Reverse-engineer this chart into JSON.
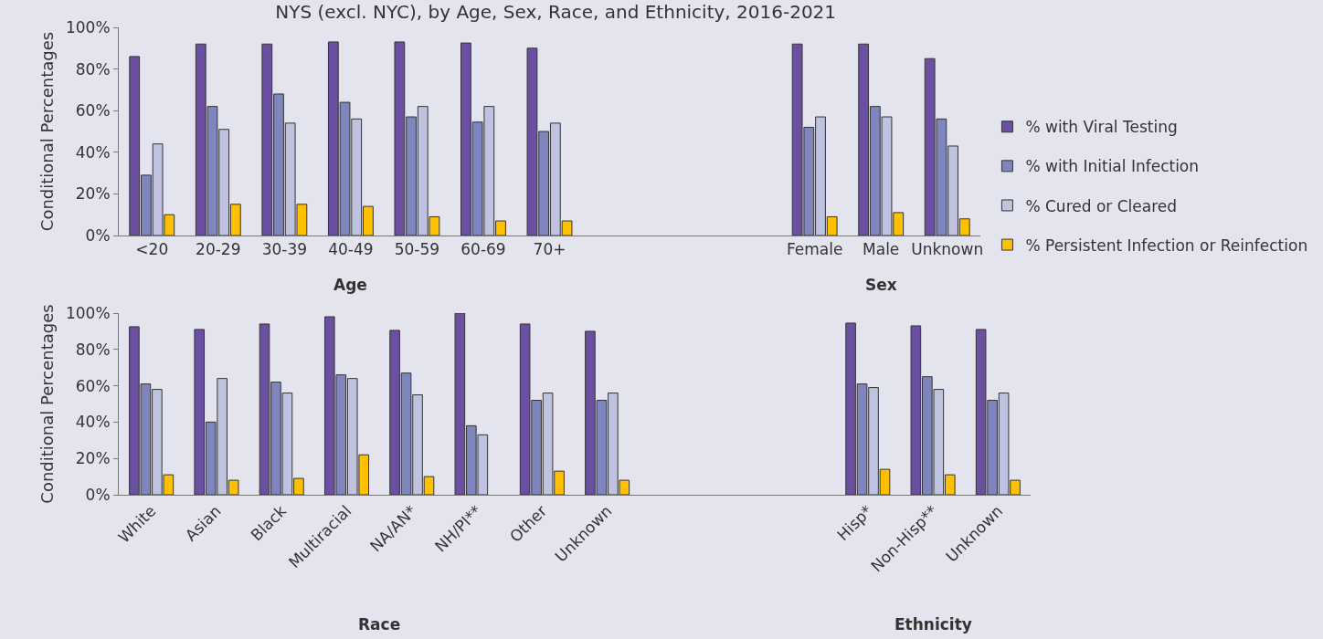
{
  "chart_data": [
    {
      "type": "bar",
      "title": "NYS (excl. NYC), by Age, Sex, Race, and Ethnicity, 2016-2021",
      "ylabel": "Conditional Percentages",
      "categories": [
        "<20",
        "20-29",
        "30-39",
        "40-49",
        "50-59",
        "60-69",
        "70+",
        null,
        null,
        null,
        "Female",
        "Male",
        "Unknown"
      ],
      "series": [
        {
          "name": "% with Viral Testing",
          "color": "#6b4fa0",
          "values": [
            86,
            92,
            92,
            93,
            93,
            92.5,
            90,
            null,
            null,
            null,
            92,
            92,
            85
          ]
        },
        {
          "name": "% with Initial Infection",
          "color": "#7f86bd",
          "values": [
            29,
            62,
            68,
            64,
            57,
            54.5,
            50,
            null,
            null,
            null,
            52,
            62,
            56
          ]
        },
        {
          "name": "% Cured or Cleared",
          "color": "#c0c3df",
          "values": [
            44,
            51,
            54,
            56,
            62,
            62,
            54,
            null,
            null,
            null,
            57,
            57,
            43
          ]
        },
        {
          "name": "% Persistent Infection or Reinfection",
          "color": "#ffc000",
          "values": [
            10,
            15,
            15,
            14,
            9,
            7,
            7,
            null,
            null,
            null,
            9,
            11,
            8
          ]
        }
      ],
      "annotations": [
        "Age",
        "Sex"
      ],
      "ylim": [
        0,
        100
      ],
      "yticks": [
        {
          "value": 0,
          "label": "0%"
        },
        {
          "value": 20,
          "label": "20%"
        },
        {
          "value": 40,
          "label": "40%"
        },
        {
          "value": 60,
          "label": "60%"
        },
        {
          "value": 80,
          "label": "80%"
        },
        {
          "value": 100,
          "label": "100%"
        }
      ],
      "grid": false,
      "legend": "right"
    },
    {
      "type": "bar",
      "ylabel": "Conditional Percentages",
      "categories": [
        "White",
        "Asian",
        "Black",
        "Multiracial",
        "NA/AN*",
        "NH/PI**",
        "Other",
        "Unknown",
        null,
        null,
        null,
        "Hisp*",
        "Non-Hisp**",
        "Unknown"
      ],
      "series": [
        {
          "color": "#6b4fa0",
          "values": [
            92.5,
            91,
            94,
            98,
            90.5,
            100,
            94,
            90,
            null,
            null,
            null,
            94.5,
            93,
            91
          ]
        },
        {
          "color": "#7f86bd",
          "values": [
            61,
            40,
            62,
            66,
            67,
            38,
            52,
            52,
            null,
            null,
            null,
            61,
            65,
            52
          ]
        },
        {
          "color": "#c0c3df",
          "values": [
            58,
            64,
            56,
            64,
            55,
            33,
            56,
            56,
            null,
            null,
            null,
            59,
            58,
            56
          ]
        },
        {
          "color": "#ffc000",
          "values": [
            11,
            8,
            9,
            22,
            10,
            null,
            13,
            8,
            null,
            null,
            null,
            14,
            11,
            8
          ]
        }
      ],
      "annotations": [
        "Race",
        "Ethnicity"
      ],
      "ylim": [
        0,
        100
      ],
      "yticks": [
        {
          "value": 0,
          "label": "0%"
        },
        {
          "value": 20,
          "label": "20%"
        },
        {
          "value": 40,
          "label": "40%"
        },
        {
          "value": 60,
          "label": "60%"
        },
        {
          "value": 80,
          "label": "80%"
        },
        {
          "value": 100,
          "label": "100%"
        }
      ],
      "grid": false,
      "legend": false
    }
  ]
}
